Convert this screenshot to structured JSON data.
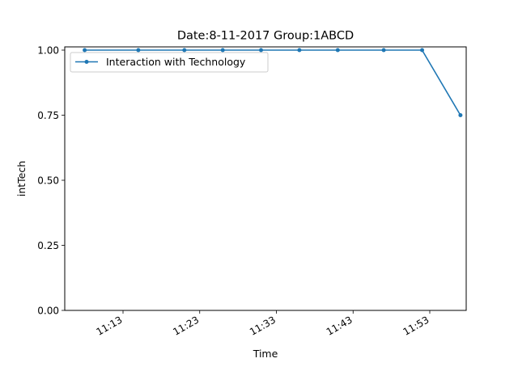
{
  "chart_data": {
    "type": "line",
    "title": "Date:8-11-2017  Group:1ABCD",
    "xlabel": "Time",
    "ylabel": "intTech",
    "x_tick_labels": [
      "11:13",
      "11:23",
      "11:33",
      "11:43",
      "11:53"
    ],
    "y_tick_labels": [
      "0.00",
      "0.25",
      "0.50",
      "0.75",
      "1.00"
    ],
    "ylim": [
      0,
      1
    ],
    "legend_position": "upper-left",
    "grid": false,
    "series": [
      {
        "name": "Interaction with Technology",
        "color": "#1f77b4",
        "x": [
          "11:08",
          "11:15",
          "11:21",
          "11:26",
          "11:31",
          "11:36",
          "11:41",
          "11:47",
          "11:52",
          "11:57"
        ],
        "y": [
          1,
          1,
          1,
          1,
          1,
          1,
          1,
          1,
          1,
          0.75
        ]
      }
    ]
  }
}
